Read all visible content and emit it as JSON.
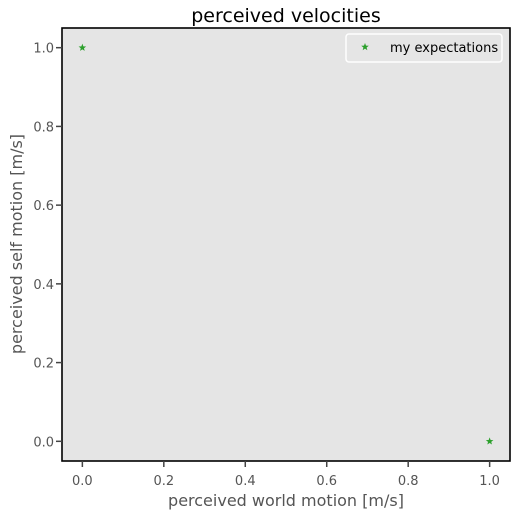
{
  "chart_data": {
    "type": "scatter",
    "title": "perceived velocities",
    "xlabel": "perceived world motion [m/s]",
    "ylabel": "perceived self motion [m/s]",
    "xlim": [
      -0.05,
      1.05
    ],
    "ylim": [
      -0.05,
      1.05
    ],
    "xticks": [
      0.0,
      0.2,
      0.4,
      0.6,
      0.8,
      1.0
    ],
    "yticks": [
      0.0,
      0.2,
      0.4,
      0.6,
      0.8,
      1.0
    ],
    "xtick_labels": [
      "0.0",
      "0.2",
      "0.4",
      "0.6",
      "0.8",
      "1.0"
    ],
    "ytick_labels": [
      "0.0",
      "0.2",
      "0.4",
      "0.6",
      "0.8",
      "1.0"
    ],
    "grid": false,
    "legend_position": "top-right",
    "background": "#e5e5e5",
    "series": [
      {
        "name": "my expectations",
        "marker": "star",
        "color": "#2ca02c",
        "x": [
          0.0,
          1.0
        ],
        "y": [
          1.0,
          0.0
        ]
      }
    ]
  }
}
